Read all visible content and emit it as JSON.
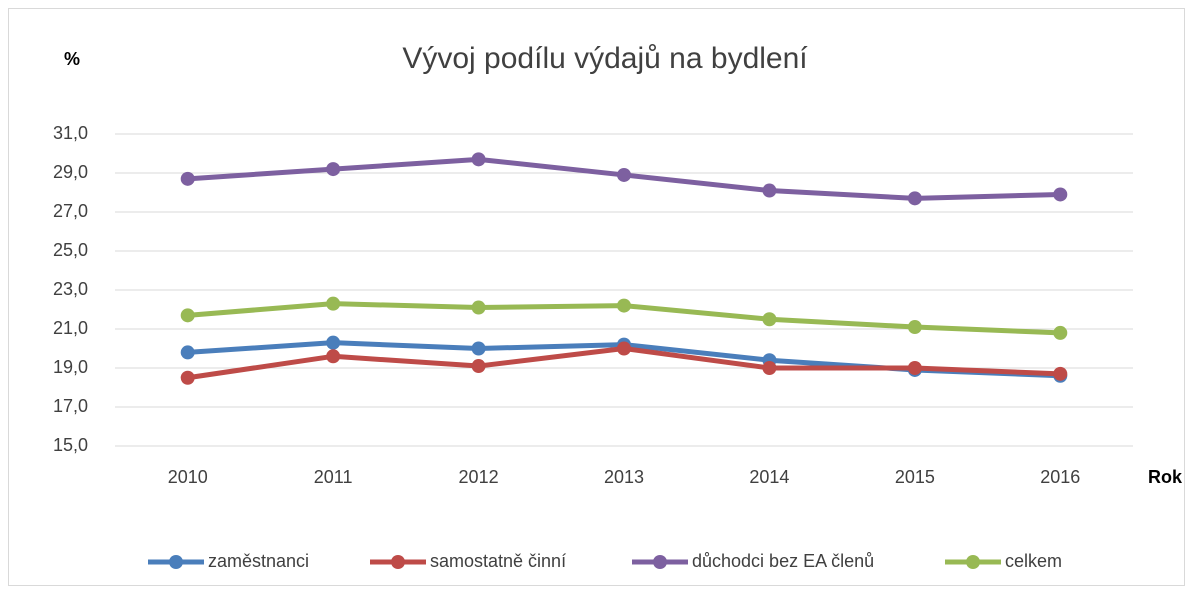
{
  "chart_data": {
    "type": "line",
    "title": "Vývoj podílu výdajů na bydlení",
    "y_label": "%",
    "x_label": "Rok",
    "categories": [
      "2010",
      "2011",
      "2012",
      "2013",
      "2014",
      "2015",
      "2016"
    ],
    "series": [
      {
        "name": "zaměstnanci",
        "color": "#4a7ebb",
        "values": [
          19.8,
          20.3,
          20.0,
          20.2,
          19.4,
          18.9,
          18.6
        ]
      },
      {
        "name": "samostatně činní",
        "color": "#be4b48",
        "values": [
          18.5,
          19.6,
          19.1,
          20.0,
          19.0,
          19.0,
          18.7
        ]
      },
      {
        "name": "důchodci bez EA členů",
        "color": "#7d60a0",
        "values": [
          28.7,
          29.2,
          29.7,
          28.9,
          28.1,
          27.7,
          27.9
        ]
      },
      {
        "name": "celkem",
        "color": "#98b954",
        "values": [
          21.7,
          22.3,
          22.1,
          22.2,
          21.5,
          21.1,
          20.8
        ]
      }
    ],
    "ylim": [
      15,
      31
    ],
    "yticks": [
      {
        "value": 15,
        "label": "15,0"
      },
      {
        "value": 17,
        "label": "17,0"
      },
      {
        "value": 19,
        "label": "19,0"
      },
      {
        "value": 21,
        "label": "21,0"
      },
      {
        "value": 23,
        "label": "23,0"
      },
      {
        "value": 25,
        "label": "25,0"
      },
      {
        "value": 27,
        "label": "27,0"
      },
      {
        "value": 29,
        "label": "29,0"
      },
      {
        "value": 31,
        "label": "31,0"
      }
    ],
    "grid": true,
    "legend": "bottom"
  }
}
